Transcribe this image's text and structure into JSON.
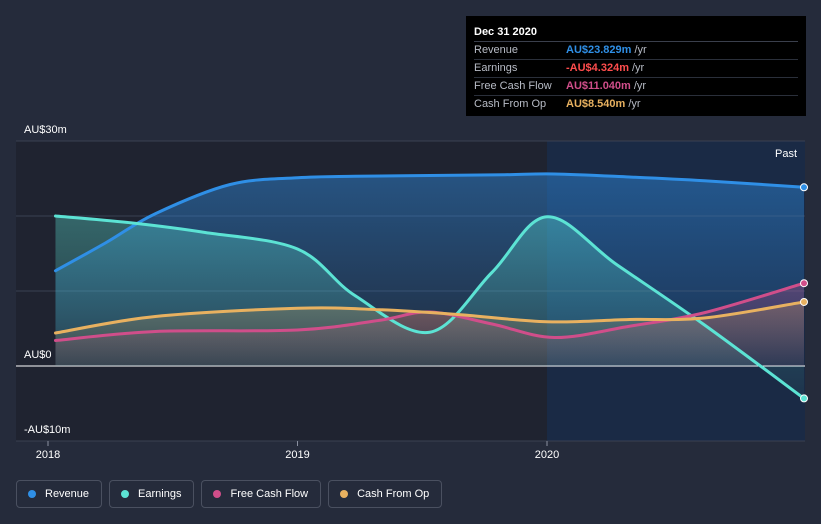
{
  "chart_data": {
    "type": "line",
    "x": [
      2017.97,
      2018.47,
      2018.97,
      2019.47,
      2019.97,
      2020.47,
      2020.97
    ],
    "series": [
      {
        "name": "Revenue",
        "key": "revenue",
        "color": "#2f8fe6",
        "points": [
          [
            2018.0,
            12.7
          ],
          [
            2018.2,
            16.4
          ],
          [
            2018.4,
            20.3
          ],
          [
            2018.7,
            24.2
          ],
          [
            2018.97,
            25.1
          ],
          [
            2019.2,
            25.3
          ],
          [
            2019.5,
            25.4
          ],
          [
            2019.8,
            25.5
          ],
          [
            2020.0,
            25.6
          ],
          [
            2020.3,
            25.2
          ],
          [
            2020.6,
            24.7
          ],
          [
            2021.0,
            23.829
          ]
        ]
      },
      {
        "name": "Earnings",
        "key": "earnings",
        "color": "#5ce3d4",
        "points": [
          [
            2018.0,
            20.0
          ],
          [
            2018.3,
            19.1
          ],
          [
            2018.6,
            17.8
          ],
          [
            2018.97,
            15.6
          ],
          [
            2019.2,
            9.4
          ],
          [
            2019.5,
            4.5
          ],
          [
            2019.75,
            12.5
          ],
          [
            2019.97,
            19.9
          ],
          [
            2020.25,
            13.5
          ],
          [
            2020.6,
            5.5
          ],
          [
            2021.0,
            -4.324
          ]
        ]
      },
      {
        "name": "Free Cash Flow",
        "key": "fcf",
        "color": "#d04e8a",
        "points": [
          [
            2018.0,
            3.4
          ],
          [
            2018.4,
            4.6
          ],
          [
            2018.97,
            4.8
          ],
          [
            2019.3,
            6.1
          ],
          [
            2019.5,
            7.2
          ],
          [
            2019.75,
            5.6
          ],
          [
            2020.0,
            3.8
          ],
          [
            2020.3,
            5.3
          ],
          [
            2020.6,
            7.1
          ],
          [
            2021.0,
            11.04
          ]
        ]
      },
      {
        "name": "Cash From Op",
        "key": "cfo",
        "color": "#e8b160",
        "points": [
          [
            2018.0,
            4.4
          ],
          [
            2018.4,
            6.6
          ],
          [
            2018.97,
            7.7
          ],
          [
            2019.3,
            7.5
          ],
          [
            2019.6,
            6.9
          ],
          [
            2019.97,
            5.9
          ],
          [
            2020.3,
            6.2
          ],
          [
            2020.6,
            6.4
          ],
          [
            2021.0,
            8.54
          ]
        ]
      }
    ],
    "ylim": [
      -10,
      30
    ],
    "xlim": [
      2017.97,
      2021.0
    ],
    "yticks": [
      {
        "value": 30,
        "label": "AU$30m"
      },
      {
        "value": 0,
        "label": "AU$0"
      },
      {
        "value": -10,
        "label": "-AU$10m"
      }
    ],
    "xticks": [
      {
        "value": 2017.97,
        "label": "2018"
      },
      {
        "value": 2018.97,
        "label": "2019"
      },
      {
        "value": 2019.97,
        "label": "2020"
      }
    ],
    "gridlines": [
      30,
      20,
      10,
      0
    ],
    "past_region_start": 2019.97,
    "past_label": "Past"
  },
  "tooltip": {
    "date": "Dec 31 2020",
    "rows": [
      {
        "label": "Revenue",
        "value": "AU$23.829m",
        "unit": "/yr",
        "color": "#2f8fe6"
      },
      {
        "label": "Earnings",
        "value": "-AU$4.324m",
        "unit": "/yr",
        "color": "#ff4d4d"
      },
      {
        "label": "Free Cash Flow",
        "value": "AU$11.040m",
        "unit": "/yr",
        "color": "#d04e8a"
      },
      {
        "label": "Cash From Op",
        "value": "AU$8.540m",
        "unit": "/yr",
        "color": "#e8b160"
      }
    ]
  },
  "legend": [
    {
      "label": "Revenue",
      "color": "#2f8fe6"
    },
    {
      "label": "Earnings",
      "color": "#5ce3d4"
    },
    {
      "label": "Free Cash Flow",
      "color": "#d04e8a"
    },
    {
      "label": "Cash From Op",
      "color": "#e8b160"
    }
  ]
}
